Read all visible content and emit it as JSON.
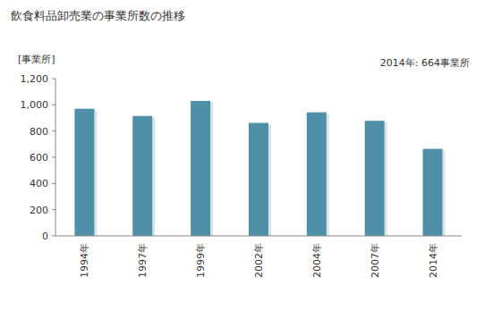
{
  "chart_data": {
    "type": "bar",
    "title": "飲食料品卸売業の事業所数の推移",
    "y_label": "[事業所]",
    "annotation": "2014年: 664事業所",
    "categories": [
      "1994年",
      "1997年",
      "1999年",
      "2002年",
      "2004年",
      "2007年",
      "2014年"
    ],
    "values": [
      970,
      915,
      1030,
      862,
      943,
      878,
      664
    ],
    "color": "#4f8fa8",
    "ylim": [
      0,
      1200
    ],
    "yticks": [
      0,
      200,
      400,
      600,
      800,
      {
        "value": 1000,
        "label": "1,000"
      },
      {
        "value": 1200,
        "label": "1,200"
      }
    ],
    "grid": false
  }
}
